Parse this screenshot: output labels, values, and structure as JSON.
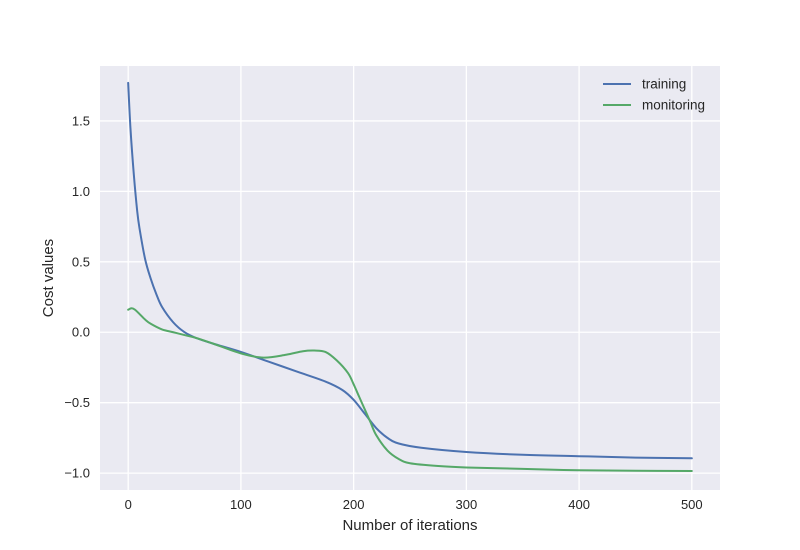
{
  "chart_data": {
    "type": "line",
    "title": "",
    "xlabel": "Number of iterations",
    "ylabel": "Cost values",
    "xlim": [
      -25,
      525
    ],
    "ylim": [
      -1.12,
      1.89
    ],
    "xticks": [
      0,
      100,
      200,
      300,
      400,
      500
    ],
    "xtick_labels": [
      "0",
      "100",
      "200",
      "300",
      "400",
      "500"
    ],
    "yticks": [
      -1.0,
      -0.5,
      0.0,
      0.5,
      1.0,
      1.5
    ],
    "ytick_labels": [
      "−1.0",
      "−0.5",
      "0.0",
      "0.5",
      "1.0",
      "1.5"
    ],
    "grid": true,
    "legend_position": "top-right",
    "series": [
      {
        "name": "training",
        "color": "#4c72b0",
        "x": [
          0,
          2,
          5,
          8,
          10,
          15,
          20,
          25,
          30,
          40,
          50,
          60,
          75,
          100,
          125,
          150,
          175,
          190,
          200,
          210,
          220,
          230,
          240,
          260,
          300,
          350,
          400,
          450,
          500
        ],
        "y": [
          1.77,
          1.45,
          1.12,
          0.86,
          0.74,
          0.52,
          0.38,
          0.27,
          0.18,
          0.07,
          0.0,
          -0.04,
          -0.08,
          -0.14,
          -0.21,
          -0.28,
          -0.35,
          -0.41,
          -0.48,
          -0.58,
          -0.68,
          -0.75,
          -0.79,
          -0.82,
          -0.85,
          -0.87,
          -0.88,
          -0.89,
          -0.895
        ]
      },
      {
        "name": "monitoring",
        "color": "#55a868",
        "x": [
          0,
          3,
          6,
          10,
          15,
          20,
          30,
          40,
          50,
          60,
          75,
          100,
          120,
          140,
          155,
          165,
          175,
          185,
          195,
          200,
          205,
          210,
          215,
          220,
          230,
          240,
          250,
          275,
          300,
          350,
          400,
          450,
          500
        ],
        "y": [
          0.16,
          0.17,
          0.16,
          0.13,
          0.09,
          0.06,
          0.02,
          0.0,
          -0.02,
          -0.04,
          -0.08,
          -0.15,
          -0.18,
          -0.16,
          -0.135,
          -0.13,
          -0.14,
          -0.2,
          -0.29,
          -0.37,
          -0.46,
          -0.55,
          -0.64,
          -0.73,
          -0.84,
          -0.9,
          -0.93,
          -0.95,
          -0.96,
          -0.97,
          -0.98,
          -0.983,
          -0.985
        ]
      }
    ]
  }
}
